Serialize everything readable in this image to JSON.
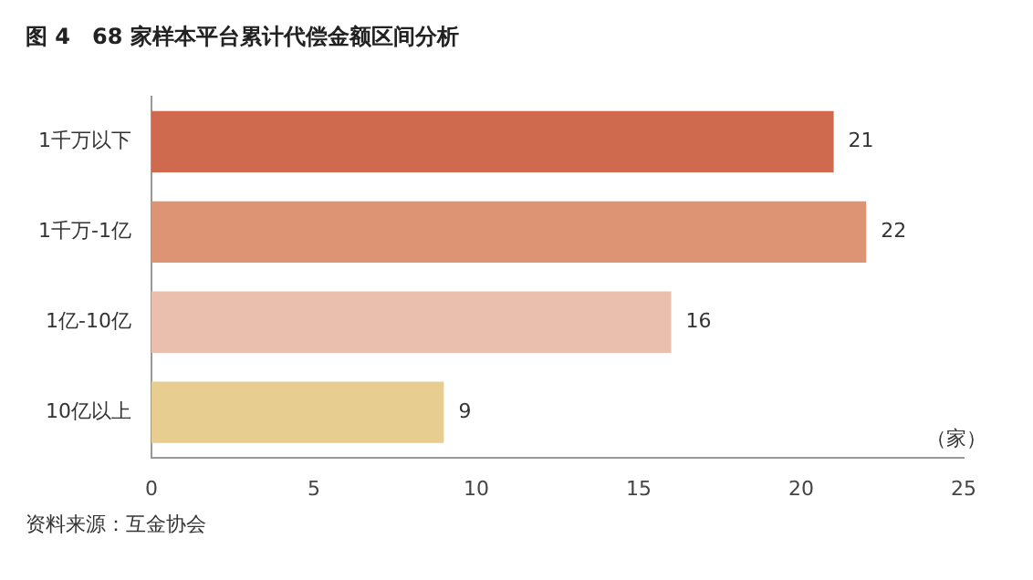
{
  "chart_data": {
    "type": "bar",
    "orientation": "horizontal",
    "title": "图 4　68 家样本平台累计代偿金额区间分析",
    "xlabel": "（家）",
    "categories": [
      "1千万以下",
      "1千万-1亿",
      "1亿-10亿",
      "10亿以上"
    ],
    "values": [
      21,
      22,
      16,
      9
    ],
    "colors": [
      "#cf6a4f",
      "#dc9474",
      "#ebbfae",
      "#e8cd91"
    ],
    "xlim": [
      0,
      25
    ],
    "xticks": [
      0,
      5,
      10,
      15,
      20,
      25
    ],
    "grid": false,
    "legend": false,
    "data_labels": true,
    "annotations": [
      "资料来源：互金协会"
    ]
  }
}
